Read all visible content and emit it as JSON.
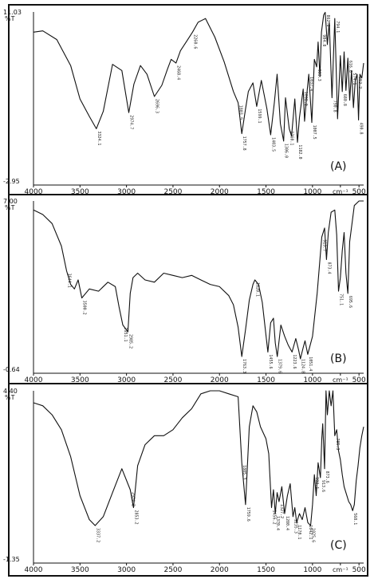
{
  "chart_data": [
    {
      "type": "line",
      "panel_label": "(A)",
      "y_top_label": "11.03",
      "y_unit": "%T",
      "y_bottom_label": "-2.95",
      "xlim": [
        4000,
        450
      ],
      "ylim": [
        -2.95,
        11.03
      ],
      "x_ticks": [
        "4000",
        "3500",
        "3000",
        "2500",
        "2000",
        "1500",
        "1000",
        "cm⁻¹",
        "500"
      ],
      "x": [
        4000,
        3900,
        3750,
        3600,
        3500,
        3400,
        3324,
        3250,
        3150,
        3050,
        2975,
        2920,
        2850,
        2780,
        2700,
        2620,
        2560,
        2520,
        2468,
        2420,
        2350,
        2290,
        2230,
        2150,
        2050,
        1950,
        1850,
        1800,
        1760,
        1720,
        1690,
        1640,
        1600,
        1550,
        1490,
        1450,
        1410,
        1380,
        1345,
        1310,
        1290,
        1250,
        1225,
        1190,
        1162,
        1140,
        1100,
        1085,
        1060,
        1040,
        1007,
        980,
        955,
        940,
        920,
        904,
        880,
        863,
        840,
        820,
        790,
        760,
        730,
        700,
        680,
        660,
        640,
        620,
        600,
        580,
        560,
        540,
        520,
        505,
        490,
        470,
        450
      ],
      "y": [
        9.4,
        9.5,
        8.8,
        6.7,
        4.0,
        2.6,
        1.6,
        3.0,
        6.8,
        6.3,
        2.9,
        5.2,
        6.7,
        6.0,
        4.2,
        5.1,
        6.4,
        7.2,
        6.9,
        7.9,
        8.7,
        9.4,
        10.2,
        10.5,
        9.0,
        7.0,
        4.6,
        3.7,
        1.2,
        3.2,
        4.6,
        5.3,
        3.4,
        5.5,
        3.2,
        1.1,
        3.7,
        6.0,
        2.0,
        0.6,
        4.1,
        1.6,
        1.0,
        4.0,
        0.5,
        2.5,
        4.8,
        2.2,
        4.5,
        6.0,
        2.1,
        7.2,
        6.6,
        8.6,
        5.8,
        9.4,
        10.8,
        11.0,
        8.4,
        10.2,
        4.1,
        10.5,
        2.4,
        7.5,
        4.6,
        7.8,
        4.7,
        7.3,
        3.9,
        6.3,
        3.3,
        5.5,
        6.0,
        2.3,
        6.0,
        5.7,
        6.9
      ]
    },
    {
      "type": "line",
      "panel_label": "(B)",
      "y_top_label": "7.00",
      "y_unit": "%T",
      "y_bottom_label": "-0.64",
      "xlim": [
        4000,
        450
      ],
      "ylim": [
        -0.64,
        7.0
      ],
      "x_ticks": [
        "4000",
        "3500",
        "3000",
        "2500",
        "2000",
        "1500",
        "1000",
        "cm⁻¹",
        "500"
      ],
      "x": [
        4000,
        3900,
        3800,
        3700,
        3644,
        3600,
        3560,
        3520,
        3480,
        3400,
        3300,
        3200,
        3120,
        3080,
        3040,
        2985,
        2960,
        2930,
        2880,
        2800,
        2700,
        2600,
        2500,
        2400,
        2300,
        2200,
        2100,
        2000,
        1900,
        1850,
        1800,
        1760,
        1720,
        1680,
        1640,
        1620,
        1580,
        1540,
        1480,
        1450,
        1420,
        1400,
        1379,
        1340,
        1300,
        1260,
        1220,
        1180,
        1150,
        1130,
        1100,
        1080,
        1051,
        1000,
        950,
        900,
        870,
        850,
        830,
        800,
        760,
        740,
        720,
        700,
        680,
        660,
        640,
        620,
        600,
        550,
        500,
        450
      ],
      "y": [
        6.6,
        6.4,
        6.0,
        5.0,
        3.9,
        3.3,
        3.1,
        3.5,
        2.7,
        3.1,
        3.0,
        3.4,
        3.2,
        2.3,
        1.5,
        1.2,
        2.9,
        3.6,
        3.8,
        3.5,
        3.4,
        3.8,
        3.7,
        3.6,
        3.7,
        3.5,
        3.3,
        3.2,
        2.8,
        2.4,
        1.4,
        0.1,
        1.3,
        2.6,
        3.3,
        3.5,
        3.3,
        2.5,
        0.3,
        1.6,
        1.8,
        0.7,
        0.1,
        1.5,
        1.0,
        0.6,
        0.3,
        0.9,
        0.4,
        0.0,
        0.5,
        0.8,
        0.2,
        1.0,
        2.9,
        5.4,
        5.8,
        4.4,
        5.6,
        6.5,
        6.6,
        5.5,
        3.0,
        3.6,
        4.8,
        5.6,
        3.8,
        2.9,
        5.2,
        6.8,
        7.0,
        7.0
      ]
    },
    {
      "type": "line",
      "panel_label": "(C)",
      "y_top_label": "4.40",
      "y_unit": "%T",
      "y_bottom_label": "-1.35",
      "xlim": [
        4000,
        450
      ],
      "ylim": [
        -1.35,
        4.4
      ],
      "x_ticks": [
        "4000",
        "3500",
        "3000",
        "2500",
        "2000",
        "1500",
        "1000",
        "cm⁻¹",
        "500"
      ],
      "x": [
        4000,
        3900,
        3800,
        3700,
        3600,
        3500,
        3400,
        3337,
        3250,
        3150,
        3050,
        2960,
        2925,
        2880,
        2800,
        2700,
        2600,
        2500,
        2400,
        2300,
        2200,
        2100,
        2000,
        1900,
        1800,
        1760,
        1720,
        1680,
        1640,
        1600,
        1560,
        1500,
        1470,
        1440,
        1420,
        1400,
        1380,
        1360,
        1330,
        1300,
        1270,
        1240,
        1210,
        1190,
        1170,
        1140,
        1110,
        1080,
        1050,
        1020,
        1000,
        980,
        960,
        940,
        915,
        900,
        890,
        870,
        855,
        840,
        820,
        800,
        780,
        760,
        740,
        720,
        700,
        680,
        660,
        640,
        610,
        590,
        568,
        550,
        530,
        510,
        490,
        470,
        450
      ],
      "y": [
        4.0,
        3.9,
        3.6,
        3.1,
        2.2,
        0.9,
        0.1,
        -0.1,
        0.2,
        1.0,
        1.8,
        1.1,
        0.5,
        1.9,
        2.6,
        2.9,
        2.9,
        3.1,
        3.5,
        3.8,
        4.3,
        4.4,
        4.4,
        4.3,
        4.2,
        2.0,
        0.6,
        3.2,
        3.9,
        3.7,
        3.2,
        2.8,
        2.3,
        0.5,
        1.1,
        0.3,
        1.0,
        0.7,
        1.2,
        0.3,
        0.9,
        1.3,
        0.2,
        0.5,
        0.0,
        0.3,
        0.1,
        0.5,
        0.0,
        -0.1,
        0.6,
        1.6,
        0.9,
        2.0,
        1.5,
        2.8,
        3.3,
        1.8,
        4.4,
        3.6,
        4.4,
        3.9,
        4.4,
        2.9,
        3.1,
        2.4,
        2.1,
        1.6,
        1.2,
        1.0,
        0.7,
        0.6,
        0.4,
        0.6,
        1.4,
        1.9,
        2.5,
        2.9,
        3.2
      ]
    }
  ],
  "peak_labels": {
    "A": [
      {
        "text": "3324.1",
        "x": 3324,
        "y": 1.6
      },
      {
        "text": "2974.7",
        "x": 2975,
        "y": 2.9
      },
      {
        "text": "2696.3",
        "x": 2700,
        "y": 4.2
      },
      {
        "text": "2468.4",
        "x": 2468,
        "y": 6.9
      },
      {
        "text": "2260.6",
        "x": 2290,
        "y": 9.4
      },
      {
        "text": "1803.9",
        "x": 1800,
        "y": 3.7
      },
      {
        "text": "1757.8",
        "x": 1760,
        "y": 1.2
      },
      {
        "text": "1599.1",
        "x": 1600,
        "y": 3.4
      },
      {
        "text": "1403.5",
        "x": 1450,
        "y": 1.1
      },
      {
        "text": "1306.0",
        "x": 1310,
        "y": 0.6
      },
      {
        "text": "1260.1",
        "x": 1250,
        "y": 1.6
      },
      {
        "text": "1182.0",
        "x": 1162,
        "y": 0.5
      },
      {
        "text": "1098.0",
        "x": 1100,
        "y": 4.8
      },
      {
        "text": "1007.5",
        "x": 1007,
        "y": 2.1
      },
      {
        "text": "1037.4",
        "x": 1040,
        "y": 6.0
      },
      {
        "text": "933.3",
        "x": 955,
        "y": 6.6
      },
      {
        "text": "904.8",
        "x": 904,
        "y": 9.4
      },
      {
        "text": "862.8",
        "x": 863,
        "y": 11.0
      },
      {
        "text": "790.8",
        "x": 790,
        "y": 4.1
      },
      {
        "text": "794.1",
        "x": 760,
        "y": 10.5
      },
      {
        "text": "680.8",
        "x": 680,
        "y": 4.6
      },
      {
        "text": "616.8",
        "x": 620,
        "y": 7.3
      },
      {
        "text": "574.1",
        "x": 580,
        "y": 6.3
      },
      {
        "text": "552.2",
        "x": 520,
        "y": 6.0
      },
      {
        "text": "490.8",
        "x": 505,
        "y": 2.3
      }
    ],
    "B": [
      {
        "text": "3644.1",
        "x": 3644,
        "y": 3.9
      },
      {
        "text": "3500.2",
        "x": 3480,
        "y": 2.7
      },
      {
        "text": "2985.2",
        "x": 2985,
        "y": 1.2
      },
      {
        "text": "2951.1",
        "x": 3040,
        "y": 1.5
      },
      {
        "text": "1763.3",
        "x": 1760,
        "y": 0.1
      },
      {
        "text": "1620.1",
        "x": 1620,
        "y": 3.5
      },
      {
        "text": "1455.6",
        "x": 1480,
        "y": 0.3
      },
      {
        "text": "1379.6",
        "x": 1379,
        "y": 0.1
      },
      {
        "text": "1223.6",
        "x": 1220,
        "y": 0.3
      },
      {
        "text": "1124.8",
        "x": 1130,
        "y": 0.0
      },
      {
        "text": "1051.4",
        "x": 1051,
        "y": 0.2
      },
      {
        "text": "913.7",
        "x": 900,
        "y": 5.4
      },
      {
        "text": "873.4",
        "x": 850,
        "y": 4.4
      },
      {
        "text": "751.1",
        "x": 720,
        "y": 3.0
      },
      {
        "text": "695.6",
        "x": 620,
        "y": 2.9
      }
    ],
    "C": [
      {
        "text": "3337.2",
        "x": 3337,
        "y": -0.1
      },
      {
        "text": "2924.2",
        "x": 2960,
        "y": 1.1
      },
      {
        "text": "2853.2",
        "x": 2925,
        "y": 0.5
      },
      {
        "text": "1805.3",
        "x": 1760,
        "y": 2.0
      },
      {
        "text": "1759.6",
        "x": 1720,
        "y": 0.6
      },
      {
        "text": "1456.2",
        "x": 1440,
        "y": 0.5
      },
      {
        "text": "1370.4",
        "x": 1400,
        "y": 0.3
      },
      {
        "text": "1327.2",
        "x": 1360,
        "y": 0.7
      },
      {
        "text": "1280.4",
        "x": 1300,
        "y": 0.3
      },
      {
        "text": "1235.3",
        "x": 1210,
        "y": 0.2
      },
      {
        "text": "1170.1",
        "x": 1170,
        "y": 0.0
      },
      {
        "text": "1042.1",
        "x": 1050,
        "y": 0.0
      },
      {
        "text": "1025.6",
        "x": 1020,
        "y": -0.1
      },
      {
        "text": "993.1",
        "x": 980,
        "y": 1.6
      },
      {
        "text": "913.6",
        "x": 915,
        "y": 1.5
      },
      {
        "text": "873.6",
        "x": 870,
        "y": 1.8
      },
      {
        "text": "785.3",
        "x": 760,
        "y": 2.9
      },
      {
        "text": "568.1",
        "x": 568,
        "y": 0.4
      }
    ]
  }
}
